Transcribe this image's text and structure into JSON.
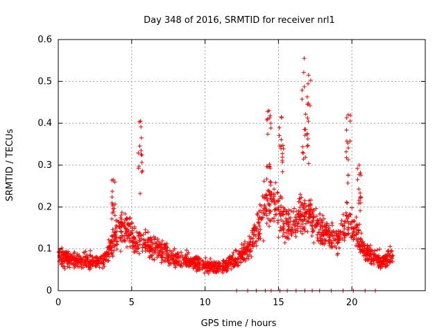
{
  "chart_data": {
    "type": "scatter",
    "title": "Day 348 of 2016, SRMTID for receiver nrl1",
    "xlabel": "GPS time / hours",
    "ylabel": "SRMTID / TECUs",
    "xlim": [
      0,
      25
    ],
    "ylim": [
      0,
      0.6
    ],
    "xticks": [
      0,
      5,
      10,
      15,
      20
    ],
    "yticks": [
      0,
      0.1,
      0.2,
      0.3,
      0.4,
      0.5,
      0.6
    ],
    "xtick_labels": [
      "0",
      "5",
      "10",
      "15",
      "20"
    ],
    "ytick_labels": [
      "0",
      "0.1",
      "0.2",
      "0.3",
      "0.4",
      "0.5",
      "0.6"
    ],
    "grid": true,
    "marker": "+",
    "color": "#ff0000",
    "series": [
      {
        "name": "nrl1",
        "profile": [
          [
            0.0,
            0.085
          ],
          [
            1.0,
            0.075
          ],
          [
            2.0,
            0.07
          ],
          [
            3.0,
            0.07
          ],
          [
            3.5,
            0.1
          ],
          [
            4.0,
            0.14
          ],
          [
            4.5,
            0.15
          ],
          [
            5.0,
            0.13
          ],
          [
            5.5,
            0.12
          ],
          [
            6.0,
            0.11
          ],
          [
            6.5,
            0.1
          ],
          [
            7.0,
            0.1
          ],
          [
            7.5,
            0.08
          ],
          [
            8.0,
            0.075
          ],
          [
            9.0,
            0.07
          ],
          [
            10.0,
            0.06
          ],
          [
            11.0,
            0.055
          ],
          [
            12.0,
            0.07
          ],
          [
            13.0,
            0.1
          ],
          [
            13.6,
            0.15
          ],
          [
            14.0,
            0.2
          ],
          [
            14.5,
            0.22
          ],
          [
            15.0,
            0.2
          ],
          [
            15.5,
            0.16
          ],
          [
            16.0,
            0.15
          ],
          [
            16.5,
            0.18
          ],
          [
            17.0,
            0.19
          ],
          [
            17.5,
            0.16
          ],
          [
            18.0,
            0.15
          ],
          [
            18.5,
            0.13
          ],
          [
            19.0,
            0.12
          ],
          [
            19.5,
            0.15
          ],
          [
            20.0,
            0.17
          ],
          [
            20.5,
            0.12
          ],
          [
            21.0,
            0.09
          ],
          [
            22.0,
            0.07
          ],
          [
            22.8,
            0.085
          ]
        ],
        "peaks": [
          [
            3.75,
            0.265
          ],
          [
            5.6,
            0.405
          ],
          [
            14.35,
            0.43
          ],
          [
            15.2,
            0.415
          ],
          [
            16.75,
            0.555
          ],
          [
            17.05,
            0.515
          ],
          [
            19.75,
            0.42
          ],
          [
            20.5,
            0.3
          ]
        ],
        "zero_points": [
          12.15,
          12.9,
          13.5,
          14.1,
          14.5,
          15.1,
          15.6,
          16.2,
          16.8,
          17.3,
          17.8,
          18.6,
          19.4,
          20.1,
          20.9,
          21.6
        ],
        "samples": 1800
      }
    ]
  }
}
